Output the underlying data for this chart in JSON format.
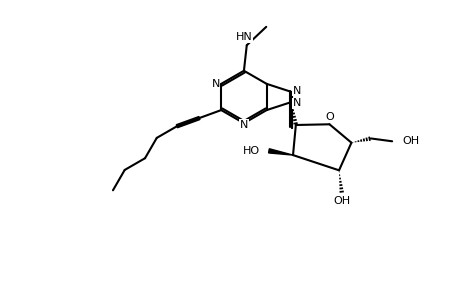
{
  "bg": "#ffffff",
  "lc": "#000000",
  "lw": 1.5,
  "fs": 8.0,
  "figsize": [
    4.56,
    2.86
  ],
  "dpi": 100,
  "xlim": [
    -0.5,
    10.0
  ],
  "ylim": [
    -0.5,
    7.5
  ]
}
